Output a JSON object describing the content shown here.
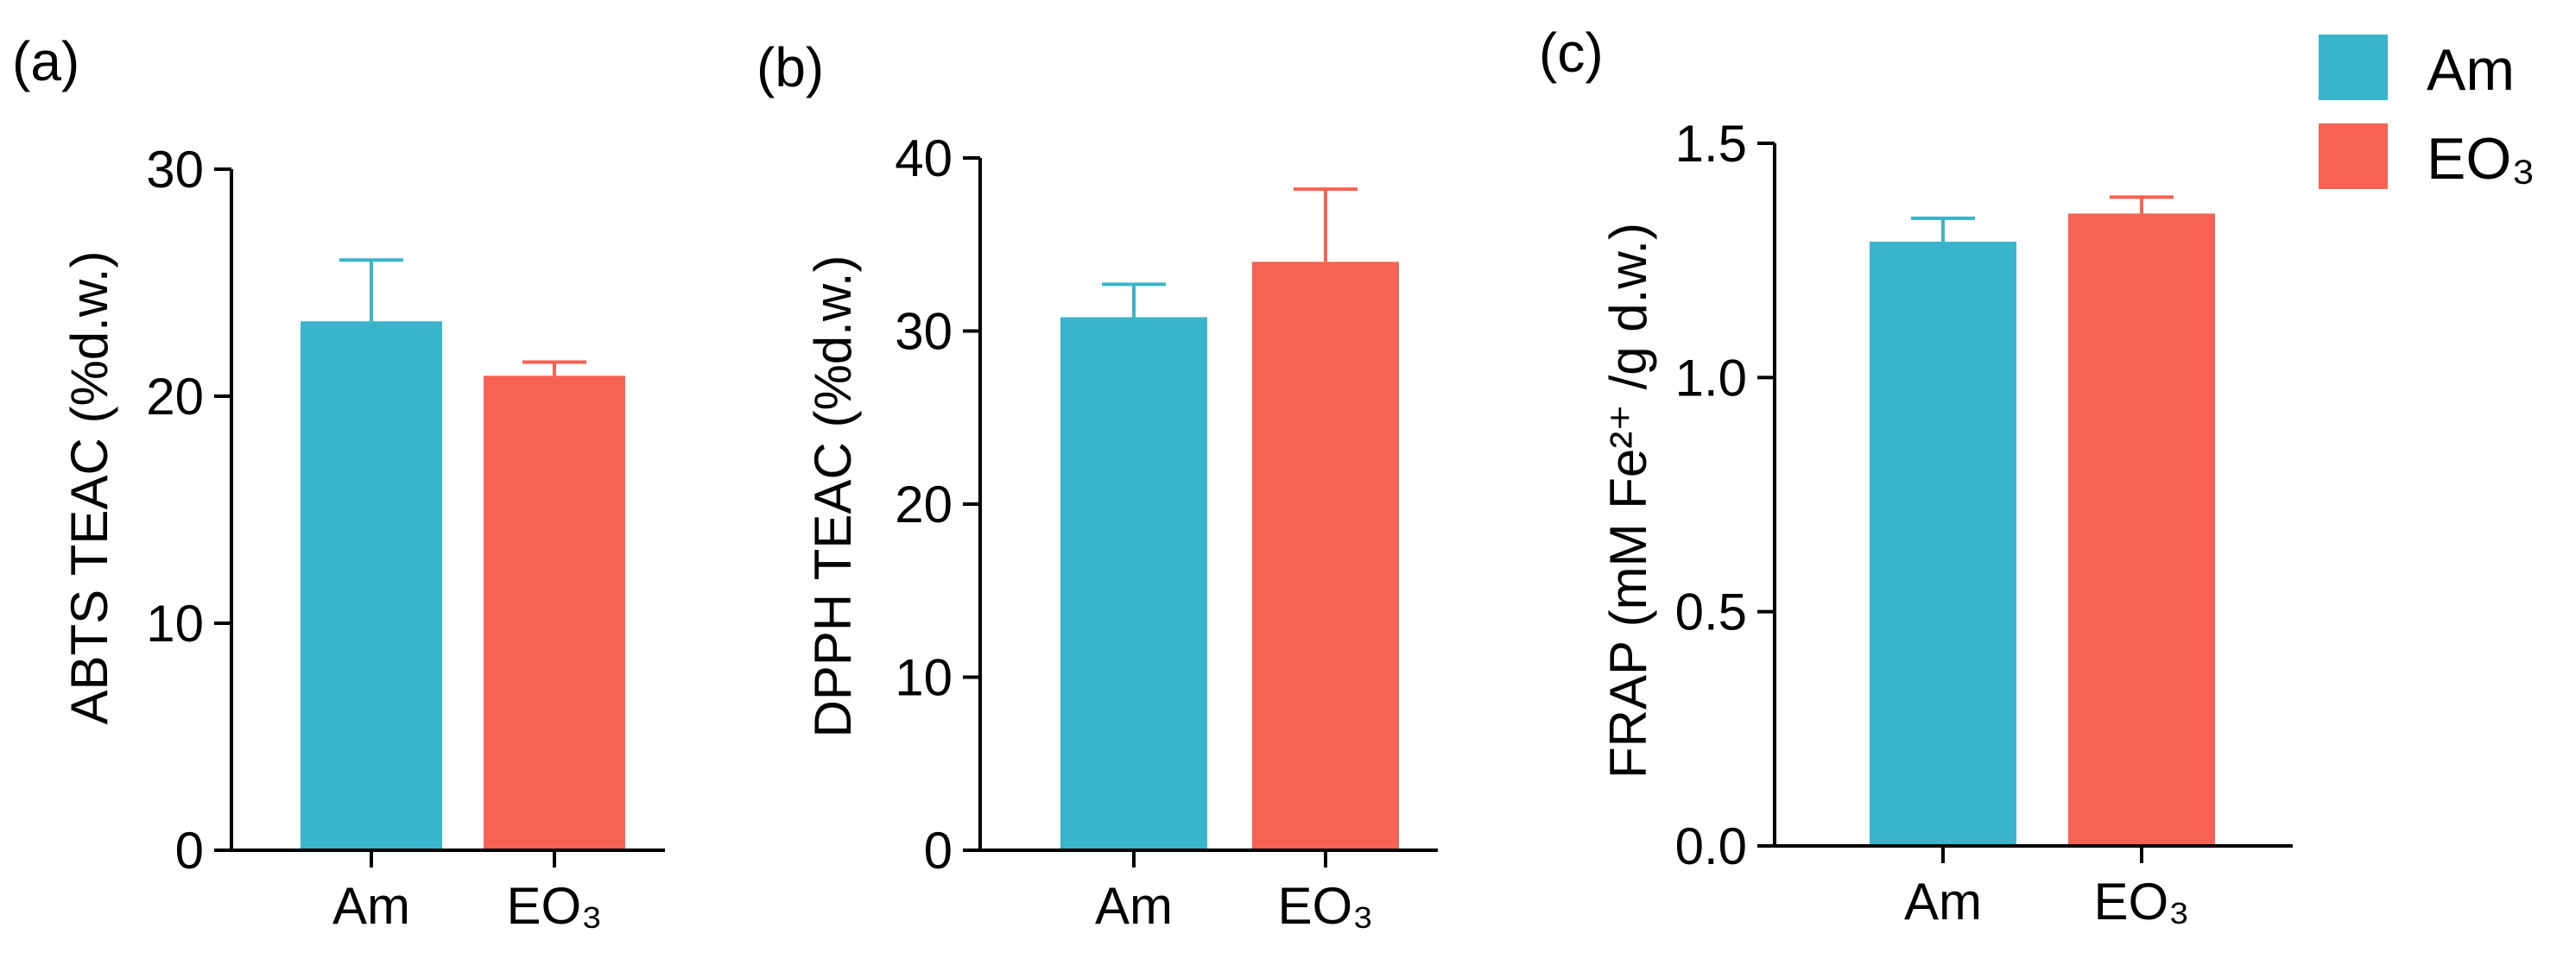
{
  "legend": {
    "items": [
      {
        "label": "Am",
        "color": "#3AB4CC"
      },
      {
        "label": "EO₃",
        "color": "#F86252"
      }
    ]
  },
  "chart_data": [
    {
      "type": "bar",
      "panel_label": "(a)",
      "ylabel": "ABTS TEAC (%d.w.)",
      "ylim": [
        0,
        30
      ],
      "yticks": [
        "0",
        "10",
        "20",
        "30"
      ],
      "categories": [
        "Am",
        "EO₃"
      ],
      "values": [
        23.3,
        20.9
      ],
      "errors": [
        2.7,
        0.6
      ],
      "colors": [
        "#3AB4CC",
        "#F86252"
      ]
    },
    {
      "type": "bar",
      "panel_label": "(b)",
      "ylabel": "DPPH TEAC (%d.w.)",
      "ylim": [
        0,
        40
      ],
      "yticks": [
        "0",
        "10",
        "20",
        "30",
        "40"
      ],
      "categories": [
        "Am",
        "EO₃"
      ],
      "values": [
        30.8,
        34.0
      ],
      "errors": [
        1.9,
        4.2
      ],
      "colors": [
        "#3AB4CC",
        "#F86252"
      ]
    },
    {
      "type": "bar",
      "panel_label": "(c)",
      "ylabel": "FRAP (mM Fe²⁺ /g d.w.)",
      "ylim": [
        0,
        1.5
      ],
      "yticks": [
        "0.0",
        "0.5",
        "1.0",
        "1.5"
      ],
      "categories": [
        "Am",
        "EO₃"
      ],
      "values": [
        1.29,
        1.35
      ],
      "errors": [
        0.05,
        0.035
      ],
      "colors": [
        "#3AB4CC",
        "#F86252"
      ]
    }
  ]
}
